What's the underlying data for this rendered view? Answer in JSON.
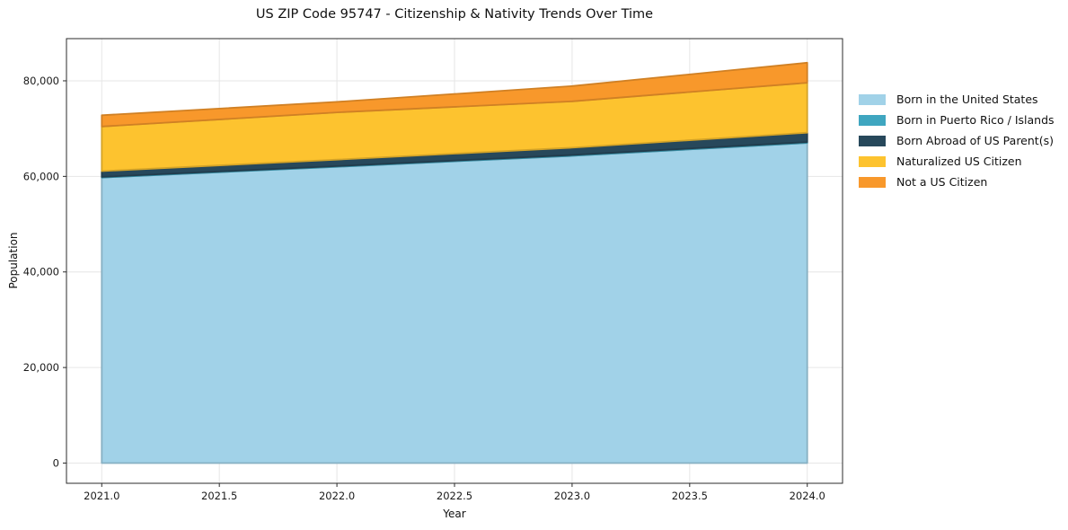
{
  "title": "US ZIP Code 95747 - Citizenship & Nativity Trends Over Time",
  "chart_data": {
    "type": "area",
    "stacked": true,
    "title": "US ZIP Code 95747 - Citizenship & Nativity Trends Over Time",
    "xlabel": "Year",
    "ylabel": "Population",
    "x": [
      2021,
      2022,
      2023,
      2024
    ],
    "series": [
      {
        "name": "Born in the United States",
        "color": "#A1D2E8",
        "values": [
          59750,
          62000,
          64300,
          67000
        ]
      },
      {
        "name": "Born in Puerto Rico / Islands",
        "color": "#3FA6C0",
        "values": [
          150,
          160,
          180,
          200
        ]
      },
      {
        "name": "Born Abroad of US Parent(s)",
        "color": "#27485B",
        "values": [
          1200,
          1340,
          1520,
          1950
        ]
      },
      {
        "name": "Naturalized US Citizen",
        "color": "#FDC32F",
        "values": [
          9350,
          9900,
          9700,
          10450
        ]
      },
      {
        "name": "Not a US Citizen",
        "color": "#F8982B",
        "values": [
          2350,
          2200,
          3200,
          4200
        ]
      }
    ],
    "stack_totals": [
      72800,
      75600,
      78900,
      83800
    ],
    "xlim": [
      2020.85,
      2024.15
    ],
    "ylim": [
      -4230,
      88830
    ],
    "x_ticks": [
      {
        "value": 2021.0,
        "label": "2021.0"
      },
      {
        "value": 2021.5,
        "label": "2021.5"
      },
      {
        "value": 2022.0,
        "label": "2022.0"
      },
      {
        "value": 2022.5,
        "label": "2022.5"
      },
      {
        "value": 2023.0,
        "label": "2023.0"
      },
      {
        "value": 2023.5,
        "label": "2023.5"
      },
      {
        "value": 2024.0,
        "label": "2024.0"
      }
    ],
    "y_ticks": [
      {
        "value": 0,
        "label": "0"
      },
      {
        "value": 20000,
        "label": "20,000"
      },
      {
        "value": 40000,
        "label": "40,000"
      },
      {
        "value": 60000,
        "label": "60,000"
      },
      {
        "value": 80000,
        "label": "80,000"
      }
    ],
    "grid": true,
    "legend_position": "right-outside"
  },
  "colors": {
    "background": "#ffffff",
    "grid": "#e6e6e6",
    "spine": "#2b2b2b",
    "tick": "#2b2b2b",
    "text": "#1a1a1a"
  }
}
